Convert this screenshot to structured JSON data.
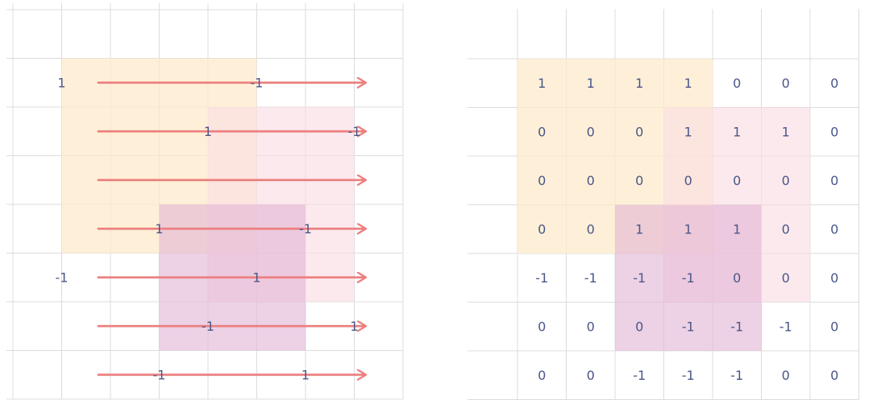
{
  "colors": {
    "grid_line": "#dcdcdc",
    "rect_orange": "#fdebcb",
    "rect_pink": "#fbdde3",
    "rect_purple": "#e3b8d6",
    "arrow": "#ec8080",
    "number_text": "#4a5688"
  },
  "left_panel": {
    "rects": [
      {
        "name": "orange-rect",
        "color_key": "rect_orange",
        "opacity": 0.75,
        "col_start": 1,
        "row_start": 1,
        "col_end": 5,
        "row_end": 5
      },
      {
        "name": "pink-rect",
        "color_key": "rect_pink",
        "opacity": 0.65,
        "col_start": 4,
        "row_start": 2,
        "col_end": 7,
        "row_end": 6
      },
      {
        "name": "purple-rect",
        "color_key": "rect_purple",
        "opacity": 0.65,
        "col_start": 3,
        "row_start": 4,
        "col_end": 6,
        "row_end": 7
      }
    ],
    "arrows": [
      {
        "row": 1
      },
      {
        "row": 2
      },
      {
        "row": 3
      },
      {
        "row": 4
      },
      {
        "row": 5
      },
      {
        "row": 6
      },
      {
        "row": 7
      }
    ],
    "labels": [
      {
        "text": "1",
        "row": 1,
        "col": 1,
        "anchor": "left-edge"
      },
      {
        "text": "-1",
        "row": 1,
        "col": 5,
        "anchor": "left-edge"
      },
      {
        "text": "1",
        "row": 2,
        "col": 4,
        "anchor": "left-edge"
      },
      {
        "text": "-1",
        "row": 2,
        "col": 7,
        "anchor": "left-edge"
      },
      {
        "text": "1",
        "row": 4,
        "col": 3,
        "anchor": "left-edge"
      },
      {
        "text": "-1",
        "row": 4,
        "col": 6,
        "anchor": "left-edge"
      },
      {
        "text": "-1",
        "row": 5,
        "col": 1,
        "anchor": "left-edge"
      },
      {
        "text": "1",
        "row": 5,
        "col": 5,
        "anchor": "left-edge"
      },
      {
        "text": "-1",
        "row": 6,
        "col": 4,
        "anchor": "left-edge"
      },
      {
        "text": "1",
        "row": 6,
        "col": 7,
        "anchor": "left-edge"
      },
      {
        "text": "-1",
        "row": 7,
        "col": 3,
        "anchor": "left-edge"
      },
      {
        "text": "1",
        "row": 7,
        "col": 6,
        "anchor": "left-edge"
      }
    ]
  },
  "right_panel": {
    "rects": [
      {
        "name": "orange-rect",
        "color_key": "rect_orange",
        "opacity": 0.75,
        "col_start": 0,
        "row_start": 0,
        "col_end": 4,
        "row_end": 4
      },
      {
        "name": "pink-rect",
        "color_key": "rect_pink",
        "opacity": 0.65,
        "col_start": 3,
        "row_start": 1,
        "col_end": 6,
        "row_end": 5
      },
      {
        "name": "purple-rect",
        "color_key": "rect_purple",
        "opacity": 0.65,
        "col_start": 2,
        "row_start": 3,
        "col_end": 5,
        "row_end": 6
      }
    ],
    "matrix": [
      [
        "1",
        "1",
        "1",
        "1",
        "0",
        "0",
        "0"
      ],
      [
        "0",
        "0",
        "0",
        "1",
        "1",
        "1",
        "0"
      ],
      [
        "0",
        "0",
        "0",
        "0",
        "0",
        "0",
        "0"
      ],
      [
        "0",
        "0",
        "1",
        "1",
        "1",
        "0",
        "0"
      ],
      [
        "-1",
        "-1",
        "-1",
        "-1",
        "0",
        "0",
        "0"
      ],
      [
        "0",
        "0",
        "0",
        "-1",
        "-1",
        "-1",
        "0"
      ],
      [
        "0",
        "0",
        "-1",
        "-1",
        "-1",
        "0",
        "0"
      ]
    ]
  }
}
